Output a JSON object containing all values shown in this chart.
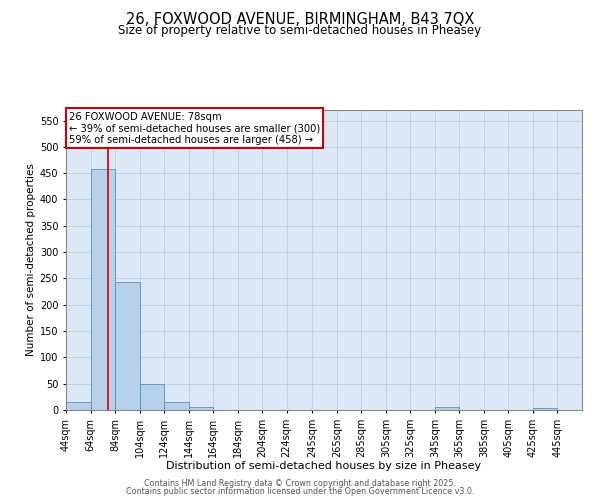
{
  "title_line1": "26, FOXWOOD AVENUE, BIRMINGHAM, B43 7QX",
  "title_line2": "Size of property relative to semi-detached houses in Pheasey",
  "xlabel": "Distribution of semi-detached houses by size in Pheasey",
  "ylabel": "Number of semi-detached properties",
  "bar_edges": [
    44,
    64,
    84,
    104,
    124,
    144,
    164,
    184,
    204,
    224,
    245,
    265,
    285,
    305,
    325,
    345,
    365,
    385,
    405,
    425,
    445
  ],
  "bar_heights": [
    15,
    458,
    244,
    50,
    15,
    5,
    0,
    0,
    0,
    0,
    0,
    0,
    0,
    0,
    0,
    5,
    0,
    0,
    0,
    3
  ],
  "bar_color": "#b8d0ea",
  "bar_edgecolor": "#6090c0",
  "property_size": 78,
  "property_line_color": "#cc0000",
  "annotation_text": "26 FOXWOOD AVENUE: 78sqm\n← 39% of semi-detached houses are smaller (300)\n59% of semi-detached houses are larger (458) →",
  "annotation_box_edgecolor": "#cc0000",
  "annotation_box_facecolor": "#ffffff",
  "ylim": [
    0,
    570
  ],
  "yticks": [
    0,
    50,
    100,
    150,
    200,
    250,
    300,
    350,
    400,
    450,
    500,
    550
  ],
  "tick_labels": [
    "44sqm",
    "64sqm",
    "84sqm",
    "104sqm",
    "124sqm",
    "144sqm",
    "164sqm",
    "184sqm",
    "204sqm",
    "224sqm",
    "245sqm",
    "265sqm",
    "285sqm",
    "305sqm",
    "325sqm",
    "345sqm",
    "365sqm",
    "385sqm",
    "405sqm",
    "425sqm",
    "445sqm"
  ],
  "footnote1": "Contains HM Land Registry data © Crown copyright and database right 2025.",
  "footnote2": "Contains public sector information licensed under the Open Government Licence v3.0.",
  "bg_color": "#ffffff",
  "plot_bg_color": "#dce8f5",
  "grid_color": "#b8cfe0"
}
